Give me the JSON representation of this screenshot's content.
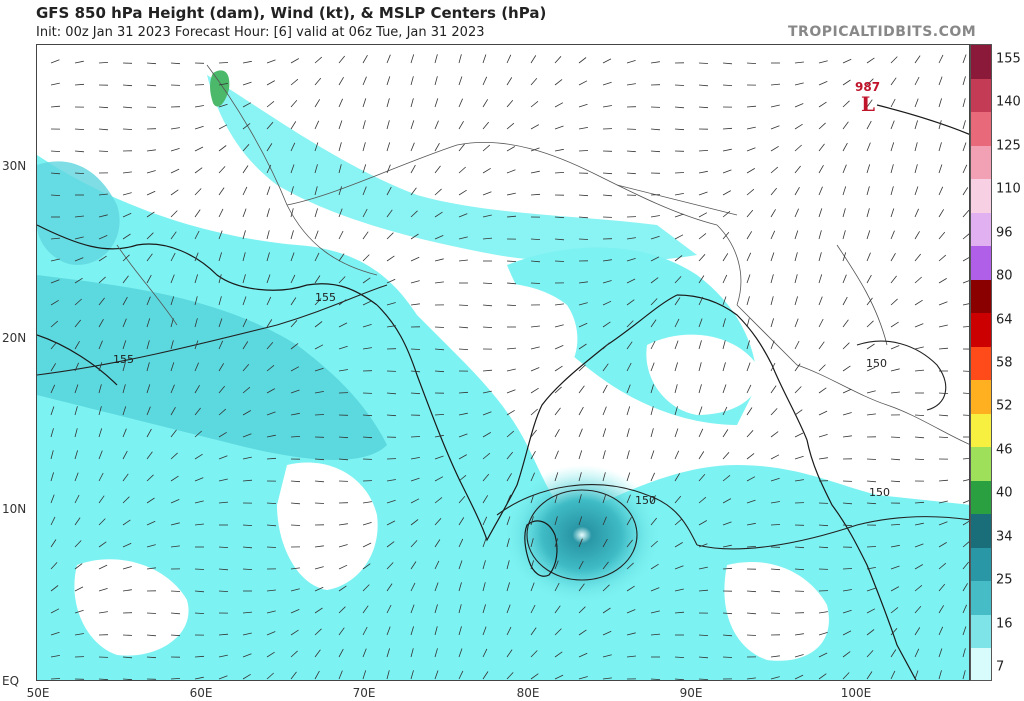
{
  "header": {
    "title": "GFS 850 hPa Height (dam), Wind (kt), & MSLP Centers (hPa)",
    "subtitle": "Init: 00z Jan 31 2023   Forecast Hour: [6]   valid at 06z Tue, Jan 31 2023",
    "brand": "TROPICALTIDBITS.COM"
  },
  "map": {
    "lat_labels": [
      "30N",
      "20N",
      "10N",
      "EQ"
    ],
    "lon_labels": [
      "50E",
      "60E",
      "70E",
      "80E",
      "90E",
      "100E"
    ],
    "contour_labels": [
      "155",
      "155",
      "150",
      "150",
      "150"
    ],
    "pressure_centers": [
      {
        "type": "L",
        "value": "987"
      }
    ],
    "colors": {
      "ocean_wind": "#7df2f2",
      "strong_wind": "#3fc3cc",
      "core_wind": "#1f9aa8",
      "low_marker": "#c0142b"
    }
  },
  "colorbar": {
    "labels": [
      "155",
      "140",
      "125",
      "110",
      "96",
      "80",
      "64",
      "58",
      "52",
      "46",
      "40",
      "34",
      "25",
      "16",
      "7"
    ],
    "colors": [
      "#8b1a3a",
      "#c43b55",
      "#e8697a",
      "#f2a0b3",
      "#f7d0e4",
      "#e0b0f0",
      "#b060e8",
      "#8a0000",
      "#cc0000",
      "#ff4a1a",
      "#ffb020",
      "#f8f040",
      "#9ee05a",
      "#2aa040",
      "#1a6e7a",
      "#2a97a6",
      "#46bcc6",
      "#7fe4e8",
      "#d8fbfb"
    ]
  }
}
